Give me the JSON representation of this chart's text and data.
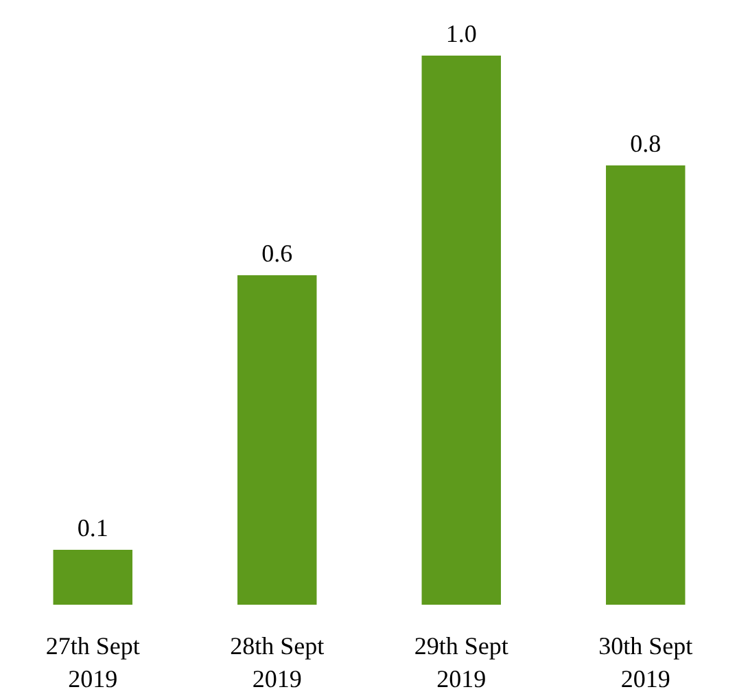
{
  "chart_data": {
    "type": "bar",
    "categories": [
      "27th Sept\n2019",
      "28th Sept\n2019",
      "29th Sept\n2019",
      "30th Sept\n2019"
    ],
    "values": [
      0.1,
      0.6,
      1.0,
      0.8
    ],
    "color": "#5e9a1c",
    "value_labels": [
      "0.1",
      "0.6",
      "1.0",
      "0.8"
    ],
    "grid": false
  }
}
